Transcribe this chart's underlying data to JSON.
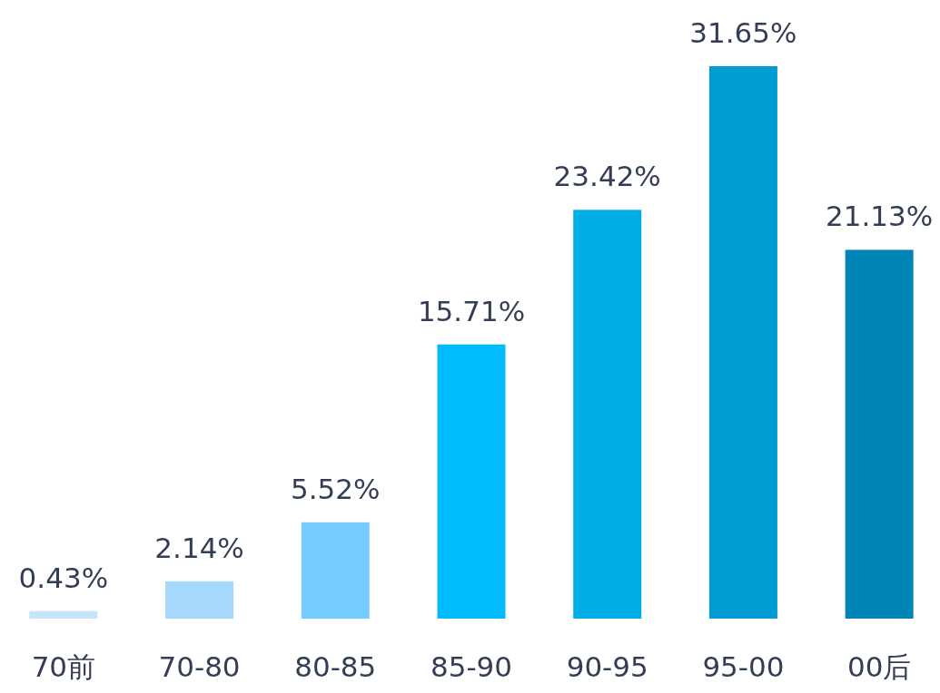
{
  "chart_data": {
    "type": "bar",
    "categories": [
      "70前",
      "70-80",
      "80-85",
      "85-90",
      "90-95",
      "95-00",
      "00后"
    ],
    "values": [
      0.43,
      2.14,
      5.52,
      15.71,
      23.42,
      31.65,
      21.13
    ],
    "value_labels": [
      "0.43%",
      "2.14%",
      "5.52%",
      "15.71%",
      "23.42%",
      "31.65%",
      "21.13%"
    ],
    "colors": [
      "#c4e4f8",
      "#a5d8fb",
      "#76cafd",
      "#00bcfc",
      "#00ade7",
      "#009cd3",
      "#0086b6"
    ],
    "grid": false
  }
}
